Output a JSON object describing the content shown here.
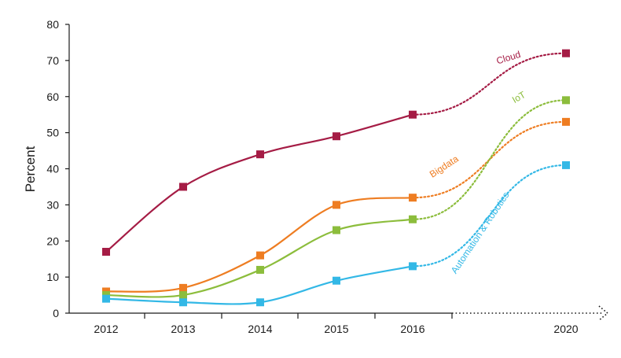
{
  "chart_data": {
    "type": "line",
    "title": "",
    "xlabel": "",
    "ylabel": "Percent",
    "ylim": [
      0,
      80
    ],
    "y_ticks": [
      "0",
      "10",
      "20",
      "30",
      "40",
      "50",
      "60",
      "70",
      "80"
    ],
    "x": [
      2012,
      2013,
      2014,
      2015,
      2016,
      2020
    ],
    "x_tick_labels": [
      "2012",
      "2013",
      "2014",
      "2015",
      "2016",
      "2020"
    ],
    "grid": false,
    "legend": "inline labels on lines",
    "projection_from": 2016,
    "series": [
      {
        "name": "Cloud",
        "color": "#a51c45",
        "values": [
          17,
          35,
          44,
          49,
          55,
          72
        ]
      },
      {
        "name": "Bigdata",
        "color": "#ee7d22",
        "values": [
          6,
          7,
          16,
          30,
          32,
          53
        ]
      },
      {
        "name": "IoT",
        "color": "#8cbd3c",
        "values": [
          5,
          5,
          12,
          23,
          26,
          59
        ]
      },
      {
        "name": "Automation & Robotics",
        "color": "#33b8e6",
        "values": [
          4,
          3,
          3,
          9,
          13,
          41
        ]
      }
    ]
  }
}
